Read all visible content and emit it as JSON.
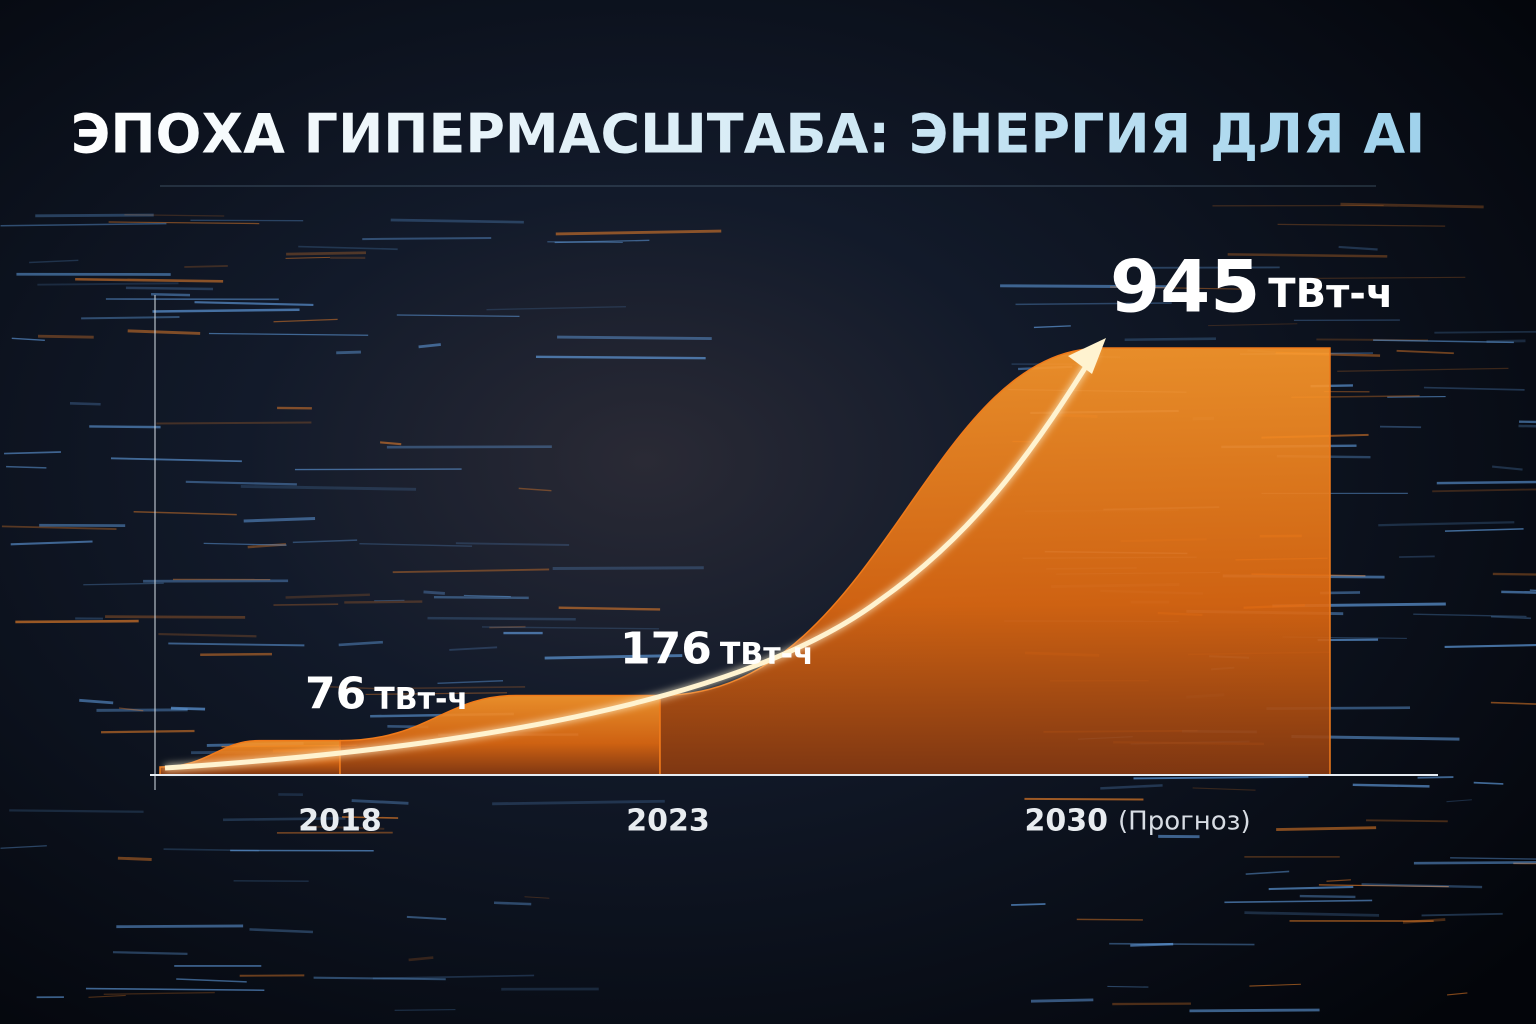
{
  "chart_data": {
    "type": "step-area",
    "title": "ЭПОХА ГИПЕРМАСШТАБА: ЭНЕРГИЯ ДЛЯ AI",
    "categories": [
      "2018",
      "2023",
      "2030"
    ],
    "category_notes": [
      null,
      null,
      "(Прогноз)"
    ],
    "values": [
      76,
      176,
      945
    ],
    "unit": "ТВт-ч",
    "color": "#f07a1a"
  }
}
